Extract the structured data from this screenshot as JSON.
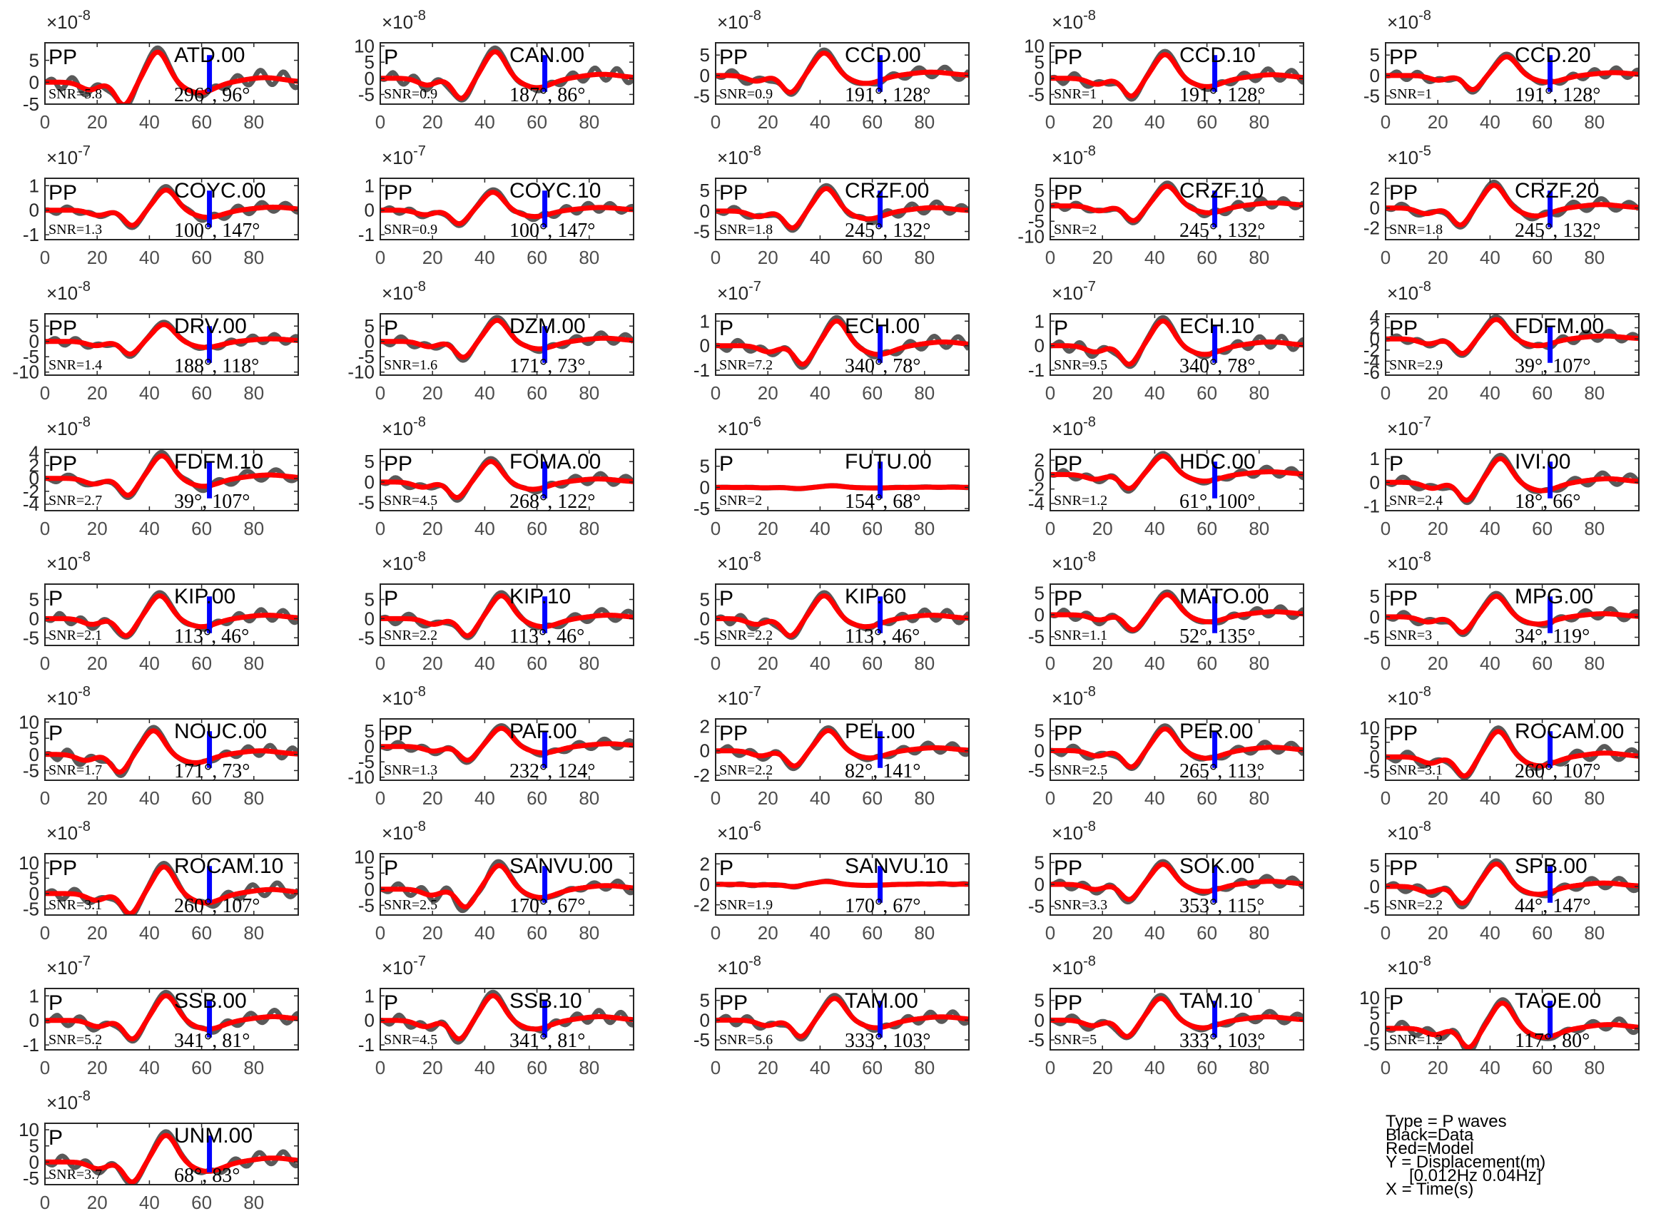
{
  "colors": {
    "data": "#595959",
    "model": "#ff0000",
    "marker": "#0000ff",
    "axes": "#262626"
  },
  "legend": {
    "lines": [
      "Type = P waves",
      "Black=Data",
      "Red=Model",
      "Y = Displacement(m)",
      "[0.012Hz 0.04Hz]",
      "X = Time(s)"
    ]
  },
  "chart_data": [
    {
      "type": "line",
      "station": "ATD.00",
      "phase": "PP",
      "snr": "SNR=5.8",
      "azimuth": "296°",
      "distance": "96°",
      "exponent": "-8",
      "ylim": [
        -5,
        9
      ],
      "yticks": [
        5,
        0,
        -5
      ],
      "xlim": [
        0,
        97
      ],
      "xticks": [
        0,
        20,
        40,
        60,
        80
      ],
      "marker_x": 63,
      "amp": 7.5
    },
    {
      "type": "line",
      "station": "CAN.00",
      "phase": "P",
      "snr": "SNR=0.9",
      "azimuth": "187°",
      "distance": "86°",
      "exponent": "-8",
      "ylim": [
        -8,
        11
      ],
      "yticks": [
        10,
        5,
        0,
        -5
      ],
      "xlim": [
        0,
        97
      ],
      "xticks": [
        0,
        20,
        40,
        60,
        80
      ],
      "marker_x": 63,
      "amp": 9
    },
    {
      "type": "line",
      "station": "CCD.00",
      "phase": "PP",
      "snr": "SNR=0.9",
      "azimuth": "191°",
      "distance": "128°",
      "exponent": "-8",
      "ylim": [
        -7,
        8
      ],
      "yticks": [
        5,
        0,
        -5
      ],
      "xlim": [
        0,
        97
      ],
      "xticks": [
        0,
        20,
        40,
        60,
        80
      ],
      "marker_x": 63,
      "amp": 6
    },
    {
      "type": "line",
      "station": "CCD.10",
      "phase": "PP",
      "snr": "SNR=1",
      "azimuth": "191°",
      "distance": "128°",
      "exponent": "-8",
      "ylim": [
        -8,
        11
      ],
      "yticks": [
        10,
        5,
        0,
        -5
      ],
      "xlim": [
        0,
        97
      ],
      "xticks": [
        0,
        20,
        40,
        60,
        80
      ],
      "marker_x": 63,
      "amp": 8
    },
    {
      "type": "line",
      "station": "CCD.20",
      "phase": "PP",
      "snr": "SNR=1",
      "azimuth": "191°",
      "distance": "128°",
      "exponent": "-8",
      "ylim": [
        -7,
        8
      ],
      "yticks": [
        5,
        0,
        -5
      ],
      "xlim": [
        0,
        97
      ],
      "xticks": [
        0,
        20,
        40,
        60,
        80
      ],
      "marker_x": 63,
      "amp": 5
    },
    {
      "type": "line",
      "station": "COYC.00",
      "phase": "PP",
      "snr": "SNR=1.3",
      "azimuth": "100°",
      "distance": "147°",
      "exponent": "-7",
      "ylim": [
        -1.2,
        1.3
      ],
      "yticks": [
        1,
        0,
        -1
      ],
      "xlim": [
        0,
        97
      ],
      "xticks": [
        0,
        20,
        40,
        60,
        80
      ],
      "marker_x": 63,
      "amp": 0.9
    },
    {
      "type": "line",
      "station": "COYC.10",
      "phase": "PP",
      "snr": "SNR=0.9",
      "azimuth": "100°",
      "distance": "147°",
      "exponent": "-7",
      "ylim": [
        -1.2,
        1.3
      ],
      "yticks": [
        1,
        0,
        -1
      ],
      "xlim": [
        0,
        97
      ],
      "xticks": [
        0,
        20,
        40,
        60,
        80
      ],
      "marker_x": 63,
      "amp": 0.8
    },
    {
      "type": "line",
      "station": "CRZF.00",
      "phase": "PP",
      "snr": "SNR=1.8",
      "azimuth": "245°",
      "distance": "132°",
      "exponent": "-8",
      "ylim": [
        -7,
        8
      ],
      "yticks": [
        5,
        0,
        -5
      ],
      "xlim": [
        0,
        97
      ],
      "xticks": [
        0,
        20,
        40,
        60,
        80
      ],
      "marker_x": 63,
      "amp": 6
    },
    {
      "type": "line",
      "station": "CRZF.10",
      "phase": "PP",
      "snr": "SNR=2",
      "azimuth": "245°",
      "distance": "132°",
      "exponent": "-8",
      "ylim": [
        -11,
        9
      ],
      "yticks": [
        5,
        0,
        -5,
        -10
      ],
      "xlim": [
        0,
        97
      ],
      "xticks": [
        0,
        20,
        40,
        60,
        80
      ],
      "marker_x": 63,
      "amp": 7
    },
    {
      "type": "line",
      "station": "CRZF.20",
      "phase": "PP",
      "snr": "SNR=1.8",
      "azimuth": "245°",
      "distance": "132°",
      "exponent": "-5",
      "ylim": [
        -3.2,
        3
      ],
      "yticks": [
        2,
        0,
        -2
      ],
      "xlim": [
        0,
        97
      ],
      "xticks": [
        0,
        20,
        40,
        60,
        80
      ],
      "marker_x": 63,
      "amp": 2.5
    },
    {
      "type": "line",
      "station": "DRV.00",
      "phase": "PP",
      "snr": "SNR=1.4",
      "azimuth": "188°",
      "distance": "118°",
      "exponent": "-8",
      "ylim": [
        -11,
        9
      ],
      "yticks": [
        5,
        0,
        -5,
        -10
      ],
      "xlim": [
        0,
        97
      ],
      "xticks": [
        0,
        20,
        40,
        60,
        80
      ],
      "marker_x": 63,
      "amp": 6
    },
    {
      "type": "line",
      "station": "DZM.00",
      "phase": "P",
      "snr": "SNR=1.6",
      "azimuth": "171°",
      "distance": "73°",
      "exponent": "-8",
      "ylim": [
        -11,
        9
      ],
      "yticks": [
        5,
        0,
        -5,
        -10
      ],
      "xlim": [
        0,
        97
      ],
      "xticks": [
        0,
        20,
        40,
        60,
        80
      ],
      "marker_x": 63,
      "amp": 7.5
    },
    {
      "type": "line",
      "station": "ECH.00",
      "phase": "P",
      "snr": "SNR=7.2",
      "azimuth": "340°",
      "distance": "78°",
      "exponent": "-7",
      "ylim": [
        -1.2,
        1.3
      ],
      "yticks": [
        1,
        0,
        -1
      ],
      "xlim": [
        0,
        97
      ],
      "xticks": [
        0,
        20,
        40,
        60,
        80
      ],
      "marker_x": 63,
      "amp": 1.1
    },
    {
      "type": "line",
      "station": "ECH.10",
      "phase": "P",
      "snr": "SNR=9.5",
      "azimuth": "340°",
      "distance": "78°",
      "exponent": "-7",
      "ylim": [
        -1.2,
        1.3
      ],
      "yticks": [
        1,
        0,
        -1
      ],
      "xlim": [
        0,
        97
      ],
      "xticks": [
        0,
        20,
        40,
        60,
        80
      ],
      "marker_x": 63,
      "amp": 1.1
    },
    {
      "type": "line",
      "station": "FDFM.00",
      "phase": "PP",
      "snr": "SNR=2.9",
      "azimuth": "39°",
      "distance": "107°",
      "exponent": "-8",
      "ylim": [
        -6.5,
        4.5
      ],
      "yticks": [
        4,
        2,
        0,
        -2,
        -4,
        -6
      ],
      "xlim": [
        0,
        97
      ],
      "xticks": [
        0,
        20,
        40,
        60,
        80
      ],
      "marker_x": 63,
      "amp": 3.8
    },
    {
      "type": "line",
      "station": "FDFM.10",
      "phase": "PP",
      "snr": "SNR=2.7",
      "azimuth": "39°",
      "distance": "107°",
      "exponent": "-8",
      "ylim": [
        -5,
        4.5
      ],
      "yticks": [
        4,
        2,
        0,
        -2,
        -4
      ],
      "xlim": [
        0,
        97
      ],
      "xticks": [
        0,
        20,
        40,
        60,
        80
      ],
      "marker_x": 63,
      "amp": 3.8
    },
    {
      "type": "line",
      "station": "FOMA.00",
      "phase": "PP",
      "snr": "SNR=4.5",
      "azimuth": "268°",
      "distance": "122°",
      "exponent": "-8",
      "ylim": [
        -7,
        8
      ],
      "yticks": [
        5,
        0,
        -5
      ],
      "xlim": [
        0,
        97
      ],
      "xticks": [
        0,
        20,
        40,
        60,
        80
      ],
      "marker_x": 63,
      "amp": 5.5
    },
    {
      "type": "line",
      "station": "FUTU.00",
      "phase": "P",
      "snr": "SNR=2",
      "azimuth": "154°",
      "distance": "68°",
      "exponent": "-6",
      "ylim": [
        -5.5,
        9
      ],
      "yticks": [
        5,
        0,
        -5
      ],
      "xlim": [
        0,
        97
      ],
      "xticks": [
        0,
        20,
        40,
        60,
        80
      ],
      "marker_x": 63,
      "amp": 0.4
    },
    {
      "type": "line",
      "station": "HDC.00",
      "phase": "PP",
      "snr": "SNR=1.2",
      "azimuth": "61°",
      "distance": "100°",
      "exponent": "-8",
      "ylim": [
        -5,
        3.5
      ],
      "yticks": [
        2,
        0,
        -2,
        -4
      ],
      "xlim": [
        0,
        97
      ],
      "xticks": [
        0,
        20,
        40,
        60,
        80
      ],
      "marker_x": 63,
      "amp": 2.8
    },
    {
      "type": "line",
      "station": "IVI.00",
      "phase": "P",
      "snr": "SNR=2.4",
      "azimuth": "18°",
      "distance": "66°",
      "exponent": "-7",
      "ylim": [
        -1.2,
        1.4
      ],
      "yticks": [
        1,
        0,
        -1
      ],
      "xlim": [
        0,
        97
      ],
      "xticks": [
        0,
        20,
        40,
        60,
        80
      ],
      "marker_x": 63,
      "amp": 1.1
    },
    {
      "type": "line",
      "station": "KIP.00",
      "phase": "P",
      "snr": "SNR=2.1",
      "azimuth": "113°",
      "distance": "46°",
      "exponent": "-8",
      "ylim": [
        -7,
        9
      ],
      "yticks": [
        5,
        0,
        -5
      ],
      "xlim": [
        0,
        97
      ],
      "xticks": [
        0,
        20,
        40,
        60,
        80
      ],
      "marker_x": 63,
      "amp": 6.5
    },
    {
      "type": "line",
      "station": "KIP.10",
      "phase": "P",
      "snr": "SNR=2.2",
      "azimuth": "113°",
      "distance": "46°",
      "exponent": "-8",
      "ylim": [
        -7,
        9
      ],
      "yticks": [
        5,
        0,
        -5
      ],
      "xlim": [
        0,
        97
      ],
      "xticks": [
        0,
        20,
        40,
        60,
        80
      ],
      "marker_x": 63,
      "amp": 6.5
    },
    {
      "type": "line",
      "station": "KIP.60",
      "phase": "P",
      "snr": "SNR=2.2",
      "azimuth": "113°",
      "distance": "46°",
      "exponent": "-8",
      "ylim": [
        -7,
        9
      ],
      "yticks": [
        5,
        0,
        -5
      ],
      "xlim": [
        0,
        97
      ],
      "xticks": [
        0,
        20,
        40,
        60,
        80
      ],
      "marker_x": 63,
      "amp": 6.5
    },
    {
      "type": "line",
      "station": "MATO.00",
      "phase": "PP",
      "snr": "SNR=1.1",
      "azimuth": "52°",
      "distance": "135°",
      "exponent": "-8",
      "ylim": [
        -7,
        7
      ],
      "yticks": [
        5,
        0,
        -5
      ],
      "xlim": [
        0,
        97
      ],
      "xticks": [
        0,
        20,
        40,
        60,
        80
      ],
      "marker_x": 63,
      "amp": 5
    },
    {
      "type": "line",
      "station": "MPG.00",
      "phase": "PP",
      "snr": "SNR=3",
      "azimuth": "34°",
      "distance": "119°",
      "exponent": "-8",
      "ylim": [
        -7,
        8
      ],
      "yticks": [
        5,
        0,
        -5
      ],
      "xlim": [
        0,
        97
      ],
      "xticks": [
        0,
        20,
        40,
        60,
        80
      ],
      "marker_x": 63,
      "amp": 5.5
    },
    {
      "type": "line",
      "station": "NOUC.00",
      "phase": "P",
      "snr": "SNR=1.7",
      "azimuth": "171°",
      "distance": "73°",
      "exponent": "-8",
      "ylim": [
        -8,
        11
      ],
      "yticks": [
        10,
        5,
        0,
        -5
      ],
      "xlim": [
        0,
        97
      ],
      "xticks": [
        0,
        20,
        40,
        60,
        80
      ],
      "marker_x": 63,
      "amp": 8
    },
    {
      "type": "line",
      "station": "PAF.00",
      "phase": "PP",
      "snr": "SNR=1.3",
      "azimuth": "232°",
      "distance": "124°",
      "exponent": "-8",
      "ylim": [
        -11,
        9
      ],
      "yticks": [
        5,
        0,
        -5,
        -10
      ],
      "xlim": [
        0,
        97
      ],
      "xticks": [
        0,
        20,
        40,
        60,
        80
      ],
      "marker_x": 63,
      "amp": 6.5
    },
    {
      "type": "line",
      "station": "PEL.00",
      "phase": "PP",
      "snr": "SNR=2.2",
      "azimuth": "82°",
      "distance": "141°",
      "exponent": "-7",
      "ylim": [
        -2.4,
        2.6
      ],
      "yticks": [
        2,
        0,
        -2
      ],
      "xlim": [
        0,
        97
      ],
      "xticks": [
        0,
        20,
        40,
        60,
        80
      ],
      "marker_x": 63,
      "amp": 1.8
    },
    {
      "type": "line",
      "station": "PER.00",
      "phase": "PP",
      "snr": "SNR=2.5",
      "azimuth": "265°",
      "distance": "113°",
      "exponent": "-8",
      "ylim": [
        -7.5,
        8
      ],
      "yticks": [
        5,
        0,
        -5
      ],
      "xlim": [
        0,
        97
      ],
      "xticks": [
        0,
        20,
        40,
        60,
        80
      ],
      "marker_x": 63,
      "amp": 6
    },
    {
      "type": "line",
      "station": "ROCAM.00",
      "phase": "PP",
      "snr": "SNR=3.1",
      "azimuth": "260°",
      "distance": "107°",
      "exponent": "-8",
      "ylim": [
        -8,
        13
      ],
      "yticks": [
        10,
        5,
        0,
        -5
      ],
      "xlim": [
        0,
        97
      ],
      "xticks": [
        0,
        20,
        40,
        60,
        80
      ],
      "marker_x": 63,
      "amp": 9.5
    },
    {
      "type": "line",
      "station": "ROCAM.10",
      "phase": "PP",
      "snr": "SNR=3.1",
      "azimuth": "260°",
      "distance": "107°",
      "exponent": "-8",
      "ylim": [
        -7,
        13
      ],
      "yticks": [
        10,
        5,
        0,
        -5
      ],
      "xlim": [
        0,
        97
      ],
      "xticks": [
        0,
        20,
        40,
        60,
        80
      ],
      "marker_x": 63,
      "amp": 9.5
    },
    {
      "type": "line",
      "station": "SANVU.00",
      "phase": "P",
      "snr": "SNR=2.5",
      "azimuth": "170°",
      "distance": "67°",
      "exponent": "-8",
      "ylim": [
        -8,
        11
      ],
      "yticks": [
        10,
        5,
        0,
        -5
      ],
      "xlim": [
        0,
        97
      ],
      "xticks": [
        0,
        20,
        40,
        60,
        80
      ],
      "marker_x": 63,
      "amp": 8
    },
    {
      "type": "line",
      "station": "SANVU.10",
      "phase": "P",
      "snr": "SNR=1.9",
      "azimuth": "170°",
      "distance": "67°",
      "exponent": "-6",
      "ylim": [
        -3,
        3
      ],
      "yticks": [
        2,
        0,
        -2
      ],
      "xlim": [
        0,
        97
      ],
      "xticks": [
        0,
        20,
        40,
        60,
        80
      ],
      "marker_x": 63,
      "amp": 0.3
    },
    {
      "type": "line",
      "station": "SOK.00",
      "phase": "PP",
      "snr": "SNR=3.3",
      "azimuth": "353°",
      "distance": "115°",
      "exponent": "-8",
      "ylim": [
        -7,
        7
      ],
      "yticks": [
        5,
        0,
        -5
      ],
      "xlim": [
        0,
        97
      ],
      "xticks": [
        0,
        20,
        40,
        60,
        80
      ],
      "marker_x": 63,
      "amp": 5
    },
    {
      "type": "line",
      "station": "SPB.00",
      "phase": "PP",
      "snr": "SNR=2.2",
      "azimuth": "44°",
      "distance": "147°",
      "exponent": "-8",
      "ylim": [
        -7,
        8
      ],
      "yticks": [
        5,
        0,
        -5
      ],
      "xlim": [
        0,
        97
      ],
      "xticks": [
        0,
        20,
        40,
        60,
        80
      ],
      "marker_x": 63,
      "amp": 6
    },
    {
      "type": "line",
      "station": "SSB.00",
      "phase": "P",
      "snr": "SNR=5.2",
      "azimuth": "341°",
      "distance": "81°",
      "exponent": "-7",
      "ylim": [
        -1.2,
        1.3
      ],
      "yticks": [
        1,
        0,
        -1
      ],
      "xlim": [
        0,
        97
      ],
      "xticks": [
        0,
        20,
        40,
        60,
        80
      ],
      "marker_x": 63,
      "amp": 1.1
    },
    {
      "type": "line",
      "station": "SSB.10",
      "phase": "P",
      "snr": "SNR=4.5",
      "azimuth": "341°",
      "distance": "81°",
      "exponent": "-7",
      "ylim": [
        -1.2,
        1.3
      ],
      "yticks": [
        1,
        0,
        -1
      ],
      "xlim": [
        0,
        97
      ],
      "xticks": [
        0,
        20,
        40,
        60,
        80
      ],
      "marker_x": 63,
      "amp": 1.1
    },
    {
      "type": "line",
      "station": "TAM.00",
      "phase": "PP",
      "snr": "SNR=5.6",
      "azimuth": "333°",
      "distance": "103°",
      "exponent": "-8",
      "ylim": [
        -7.5,
        8
      ],
      "yticks": [
        5,
        0,
        -5
      ],
      "xlim": [
        0,
        97
      ],
      "xticks": [
        0,
        20,
        40,
        60,
        80
      ],
      "marker_x": 63,
      "amp": 6
    },
    {
      "type": "line",
      "station": "TAM.10",
      "phase": "PP",
      "snr": "SNR=5",
      "azimuth": "333°",
      "distance": "103°",
      "exponent": "-8",
      "ylim": [
        -7.5,
        8
      ],
      "yticks": [
        5,
        0,
        -5
      ],
      "xlim": [
        0,
        97
      ],
      "xticks": [
        0,
        20,
        40,
        60,
        80
      ],
      "marker_x": 63,
      "amp": 6
    },
    {
      "type": "line",
      "station": "TAOE.00",
      "phase": "P",
      "snr": "SNR=1.2",
      "azimuth": "117°",
      "distance": "80°",
      "exponent": "-8",
      "ylim": [
        -7,
        13
      ],
      "yticks": [
        10,
        5,
        0,
        -5
      ],
      "xlim": [
        0,
        97
      ],
      "xticks": [
        0,
        20,
        40,
        60,
        80
      ],
      "marker_x": 63,
      "amp": 9
    },
    {
      "type": "line",
      "station": "UNM.00",
      "phase": "P",
      "snr": "SNR=3.7",
      "azimuth": "68°",
      "distance": "83°",
      "exponent": "-8",
      "ylim": [
        -7,
        12
      ],
      "yticks": [
        10,
        5,
        0,
        -5
      ],
      "xlim": [
        0,
        97
      ],
      "xticks": [
        0,
        20,
        40,
        60,
        80
      ],
      "marker_x": 63,
      "amp": 9
    }
  ]
}
